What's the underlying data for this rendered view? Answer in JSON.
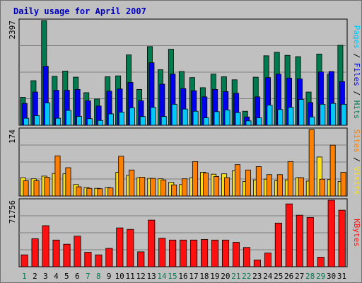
{
  "title": "Daily usage for April 2007",
  "colors": {
    "hits": "#007a4f",
    "files": "#0000ee",
    "pages": "#00c8f8",
    "visits": "#f8e020",
    "sites": "#ff7f00",
    "kbytes": "#ff1010",
    "title": "#0000c0",
    "weekend": "#007a4f",
    "weekday": "#000000"
  },
  "chart_data": [
    {
      "type": "bar",
      "panel": "hits-files-pages",
      "ymax_label": "2397",
      "ylim": [
        0,
        2397
      ],
      "x": [
        1,
        2,
        3,
        4,
        5,
        6,
        7,
        8,
        9,
        10,
        11,
        12,
        13,
        14,
        15,
        16,
        17,
        18,
        19,
        20,
        21,
        22,
        23,
        24,
        25,
        26,
        27,
        28,
        29,
        30,
        31
      ],
      "series": [
        {
          "name": "Hits",
          "values": [
            640,
            1020,
            2397,
            1120,
            1240,
            1100,
            745,
            600,
            1110,
            1130,
            1610,
            820,
            1800,
            1270,
            1740,
            1230,
            1090,
            860,
            1170,
            1110,
            1040,
            320,
            1100,
            1590,
            1670,
            1600,
            1570,
            760,
            1630,
            1170,
            1830
          ]
        },
        {
          "name": "Files",
          "values": [
            500,
            760,
            1350,
            800,
            800,
            820,
            560,
            440,
            780,
            830,
            980,
            560,
            1430,
            940,
            1170,
            840,
            790,
            650,
            820,
            770,
            730,
            190,
            650,
            1090,
            1170,
            1080,
            1060,
            520,
            1220,
            1230,
            1000
          ]
        },
        {
          "name": "Pages",
          "values": [
            160,
            220,
            510,
            160,
            340,
            200,
            150,
            110,
            260,
            300,
            400,
            200,
            410,
            200,
            480,
            370,
            320,
            170,
            310,
            350,
            290,
            100,
            170,
            460,
            360,
            410,
            590,
            190,
            480,
            500,
            480
          ]
        }
      ],
      "side_label": "Pages / Files / Hits"
    },
    {
      "type": "bar",
      "panel": "visits-sites",
      "ymax_label": "174",
      "ylim": [
        0,
        174
      ],
      "x": [
        1,
        2,
        3,
        4,
        5,
        6,
        7,
        8,
        9,
        10,
        11,
        12,
        13,
        14,
        15,
        16,
        17,
        18,
        19,
        20,
        21,
        22,
        23,
        24,
        25,
        26,
        27,
        28,
        29,
        30,
        31
      ],
      "series": [
        {
          "name": "Visits",
          "values": [
            48,
            45,
            52,
            59,
            58,
            30,
            22,
            20,
            22,
            62,
            54,
            48,
            46,
            45,
            36,
            30,
            48,
            62,
            57,
            58,
            66,
            38,
            42,
            44,
            40,
            42,
            48,
            39,
            102,
            43,
            38
          ]
        },
        {
          "name": "Sites",
          "values": [
            40,
            40,
            49,
            105,
            74,
            24,
            20,
            19,
            21,
            104,
            68,
            49,
            46,
            42,
            29,
            45,
            90,
            60,
            51,
            48,
            82,
            68,
            77,
            56,
            56,
            90,
            48,
            174,
            44,
            133,
            62
          ]
        }
      ],
      "side_label": "Sites / Visits"
    },
    {
      "type": "bar",
      "panel": "kbytes",
      "ymax_label": "71756",
      "ylim": [
        0,
        71756
      ],
      "x": [
        1,
        2,
        3,
        4,
        5,
        6,
        7,
        8,
        9,
        10,
        11,
        12,
        13,
        14,
        15,
        16,
        17,
        18,
        19,
        20,
        21,
        22,
        23,
        24,
        25,
        26,
        27,
        28,
        29,
        30,
        31
      ],
      "series": [
        {
          "name": "KBytes",
          "values": [
            12800,
            30200,
            44300,
            28800,
            24300,
            33000,
            15600,
            12800,
            19800,
            41900,
            40300,
            16100,
            50300,
            30800,
            28800,
            28800,
            28800,
            29400,
            28800,
            28800,
            26300,
            20800,
            7300,
            14800,
            47100,
            67800,
            55600,
            53200,
            10300,
            71756,
            61000
          ]
        }
      ],
      "side_label": "KBytes"
    }
  ],
  "day_labels": [
    "1",
    "2",
    "3",
    "4",
    "5",
    "6",
    "7",
    "8",
    "9",
    "10",
    "11",
    "12",
    "13",
    "14",
    "15",
    "16",
    "17",
    "18",
    "19",
    "20",
    "21",
    "22",
    "23",
    "24",
    "25",
    "26",
    "27",
    "28",
    "29",
    "30",
    "31"
  ],
  "weekend_days": [
    1,
    7,
    8,
    14,
    15,
    21,
    22,
    28,
    29
  ]
}
